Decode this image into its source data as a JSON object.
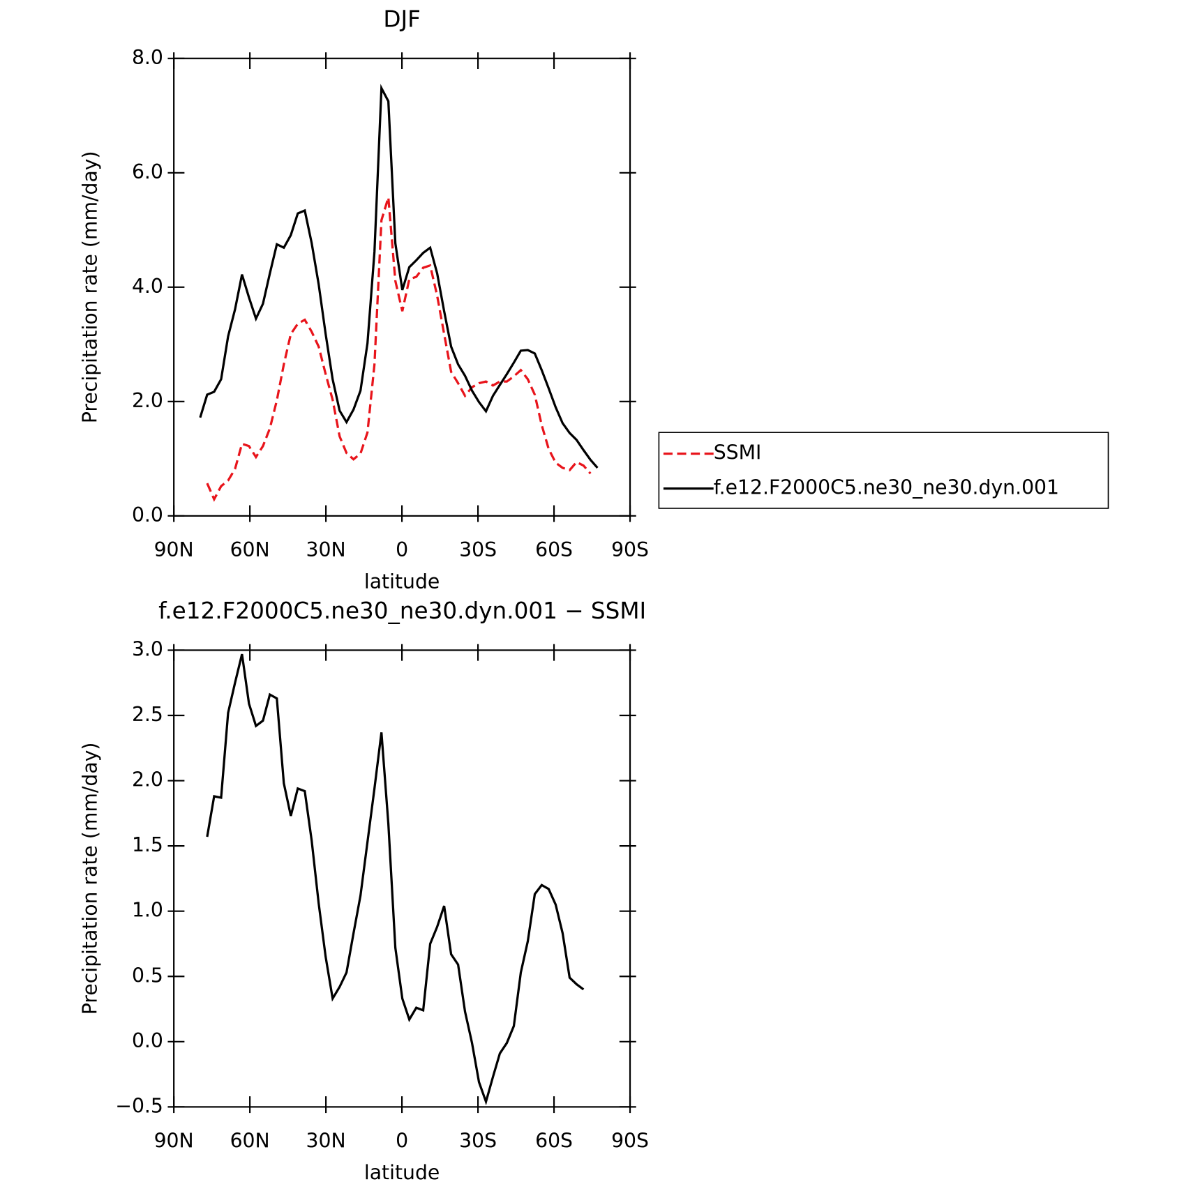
{
  "chart_data": [
    {
      "type": "line",
      "title": "DJF",
      "xlabel": "latitude",
      "ylabel": "Precipitation rate (mm/day)",
      "x": [
        79.6,
        76.85,
        74.1,
        71.35,
        68.6,
        65.85,
        63.1,
        60.35,
        57.6,
        54.85,
        52.1,
        49.35,
        46.6,
        43.85,
        41.1,
        38.35,
        35.6,
        32.85,
        30.1,
        27.35,
        24.6,
        21.85,
        19.1,
        16.35,
        13.6,
        10.85,
        8.1,
        5.35,
        2.6,
        -0.15,
        -2.9,
        -5.65,
        -8.4,
        -11.15,
        -13.9,
        -16.65,
        -19.4,
        -22.15,
        -24.9,
        -27.65,
        -30.4,
        -33.15,
        -35.9,
        -38.65,
        -41.4,
        -44.15,
        -46.9,
        -49.65,
        -52.4,
        -55.15,
        -57.9,
        -60.65,
        -63.4,
        -66.15,
        -68.9,
        -71.65,
        -74.4,
        -77.15
      ],
      "series": [
        {
          "name": "SSMI",
          "color": "#e8141b",
          "dashed": true,
          "values": [
            null,
            0.57,
            0.29,
            0.52,
            0.62,
            0.82,
            1.26,
            1.22,
            1.03,
            1.22,
            1.53,
            2.02,
            2.65,
            3.18,
            3.36,
            3.43,
            3.22,
            2.96,
            2.48,
            2.03,
            1.39,
            1.1,
            0.99,
            1.09,
            1.46,
            2.65,
            5.17,
            5.57,
            4.11,
            3.58,
            4.14,
            4.18,
            4.34,
            4.38,
            3.85,
            3.18,
            2.52,
            2.32,
            2.1,
            2.25,
            2.32,
            2.35,
            2.28,
            2.35,
            2.35,
            2.44,
            2.55,
            2.39,
            2.12,
            1.59,
            1.17,
            0.93,
            0.84,
            0.8,
            0.94,
            0.88,
            0.74,
            null
          ]
        },
        {
          "name": "f.e12.F2000C5.ne30_ne30.dyn.001",
          "color": "#000000",
          "dashed": false,
          "values": [
            1.72,
            2.12,
            2.17,
            2.39,
            3.14,
            3.61,
            4.22,
            3.82,
            3.45,
            3.71,
            4.24,
            4.75,
            4.69,
            4.91,
            5.29,
            5.34,
            4.77,
            4.05,
            3.18,
            2.39,
            1.84,
            1.64,
            1.86,
            2.19,
            3.02,
            4.62,
            7.48,
            7.25,
            4.77,
            3.95,
            4.35,
            4.47,
            4.6,
            4.69,
            4.24,
            3.58,
            2.96,
            2.65,
            2.45,
            2.19,
            1.99,
            1.83,
            2.1,
            2.29,
            2.48,
            2.68,
            2.89,
            2.9,
            2.84,
            2.55,
            2.23,
            1.9,
            1.62,
            1.45,
            1.33,
            1.15,
            0.98,
            0.84
          ]
        }
      ],
      "xlim": [
        90,
        -90
      ],
      "xticks": [
        {
          "value": 90,
          "label": "90N"
        },
        {
          "value": 60,
          "label": "60N"
        },
        {
          "value": 30,
          "label": "30N"
        },
        0,
        {
          "value": -30,
          "label": "30S"
        },
        {
          "value": -60,
          "label": "60S"
        },
        {
          "value": -90,
          "label": "90S"
        }
      ],
      "ylim": [
        0,
        8
      ],
      "yticks": [
        {
          "value": 0,
          "label": "0.0"
        },
        {
          "value": 2,
          "label": "2.0"
        },
        {
          "value": 4,
          "label": "4.0"
        },
        {
          "value": 6,
          "label": "6.0"
        },
        {
          "value": 8,
          "label": "8.0"
        }
      ],
      "legend": "right"
    },
    {
      "type": "line",
      "title": "f.e12.F2000C5.ne30_ne30.dyn.001 − SSMI",
      "xlabel": "latitude",
      "ylabel": "Precipitation rate (mm/day)",
      "x": [
        79.6,
        76.85,
        74.1,
        71.35,
        68.6,
        65.85,
        63.1,
        60.35,
        57.6,
        54.85,
        52.1,
        49.35,
        46.6,
        43.85,
        41.1,
        38.35,
        35.6,
        32.85,
        30.1,
        27.35,
        24.6,
        21.85,
        19.1,
        16.35,
        13.6,
        10.85,
        8.1,
        5.35,
        2.6,
        -0.15,
        -2.9,
        -5.65,
        -8.4,
        -11.15,
        -13.9,
        -16.65,
        -19.4,
        -22.15,
        -24.9,
        -27.65,
        -30.4,
        -33.15,
        -35.9,
        -38.65,
        -41.4,
        -44.15,
        -46.9,
        -49.65,
        -52.4,
        -55.15,
        -57.9,
        -60.65,
        -63.4,
        -66.15,
        -68.9,
        -71.65,
        -74.4,
        -77.15
      ],
      "series": [
        {
          "color": "#000000",
          "dashed": false,
          "values": [
            null,
            1.57,
            1.88,
            1.87,
            2.52,
            2.75,
            2.97,
            2.59,
            2.42,
            2.46,
            2.66,
            2.63,
            1.98,
            1.73,
            1.94,
            1.92,
            1.54,
            1.06,
            0.65,
            0.33,
            0.42,
            0.53,
            0.83,
            1.12,
            1.53,
            1.94,
            2.37,
            1.67,
            0.72,
            0.33,
            0.17,
            0.26,
            0.24,
            0.75,
            0.88,
            1.04,
            0.67,
            0.59,
            0.23,
            -0.01,
            -0.31,
            -0.46,
            -0.27,
            -0.09,
            -0.01,
            0.12,
            0.53,
            0.77,
            1.13,
            1.2,
            1.17,
            1.05,
            0.83,
            0.49,
            0.44,
            0.4,
            null,
            null
          ]
        }
      ],
      "xlim": [
        90,
        -90
      ],
      "xticks": [
        {
          "value": 90,
          "label": "90N"
        },
        {
          "value": 60,
          "label": "60N"
        },
        {
          "value": 30,
          "label": "30N"
        },
        0,
        {
          "value": -30,
          "label": "30S"
        },
        {
          "value": -60,
          "label": "60S"
        },
        {
          "value": -90,
          "label": "90S"
        }
      ],
      "ylim": [
        -0.5,
        3
      ],
      "yticks": [
        {
          "value": -0.5,
          "label": "−0.5"
        },
        {
          "value": 0,
          "label": "0.0"
        },
        0.5,
        {
          "value": 1,
          "label": "1.0"
        },
        1.5,
        {
          "value": 2,
          "label": "2.0"
        },
        2.5,
        {
          "value": 3,
          "label": "3.0"
        }
      ]
    }
  ]
}
